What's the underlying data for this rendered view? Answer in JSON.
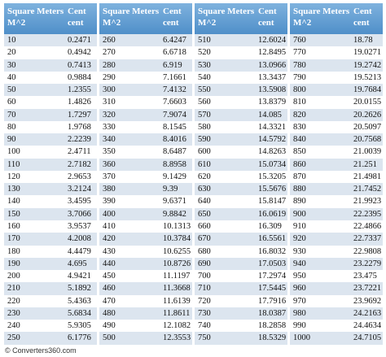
{
  "groups": [
    {
      "headers": [
        "Square Meters\nM^2",
        "Cent\ncent"
      ],
      "rows": [
        [
          10,
          0.2471
        ],
        [
          20,
          0.4942
        ],
        [
          30,
          0.7413
        ],
        [
          40,
          0.9884
        ],
        [
          50,
          1.2355
        ],
        [
          60,
          1.4826
        ],
        [
          70,
          1.7297
        ],
        [
          80,
          1.9768
        ],
        [
          90,
          2.2239
        ],
        [
          100,
          2.4711
        ],
        [
          110,
          2.7182
        ],
        [
          120,
          2.9653
        ],
        [
          130,
          3.2124
        ],
        [
          140,
          3.4595
        ],
        [
          150,
          3.7066
        ],
        [
          160,
          3.9537
        ],
        [
          170,
          4.2008
        ],
        [
          180,
          4.4479
        ],
        [
          190,
          4.695
        ],
        [
          200,
          4.9421
        ],
        [
          210,
          5.1892
        ],
        [
          220,
          5.4363
        ],
        [
          230,
          5.6834
        ],
        [
          240,
          5.9305
        ],
        [
          250,
          6.1776
        ]
      ]
    },
    {
      "headers": [
        "Square Meters\nM^2",
        "Cent\ncent"
      ],
      "rows": [
        [
          260,
          6.4247
        ],
        [
          270,
          6.6718
        ],
        [
          280,
          6.919
        ],
        [
          290,
          7.1661
        ],
        [
          300,
          7.4132
        ],
        [
          310,
          7.6603
        ],
        [
          320,
          7.9074
        ],
        [
          330,
          8.1545
        ],
        [
          340,
          8.4016
        ],
        [
          350,
          8.6487
        ],
        [
          360,
          8.8958
        ],
        [
          370,
          9.1429
        ],
        [
          380,
          9.39
        ],
        [
          390,
          9.6371
        ],
        [
          400,
          9.8842
        ],
        [
          410,
          10.1313
        ],
        [
          420,
          10.3784
        ],
        [
          430,
          10.6255
        ],
        [
          440,
          10.8726
        ],
        [
          450,
          11.1197
        ],
        [
          460,
          11.3668
        ],
        [
          470,
          11.6139
        ],
        [
          480,
          11.8611
        ],
        [
          490,
          12.1082
        ],
        [
          500,
          12.3553
        ]
      ]
    },
    {
      "headers": [
        "Square Meters\nM^2",
        "Cent\ncent"
      ],
      "rows": [
        [
          510,
          12.6024
        ],
        [
          520,
          12.8495
        ],
        [
          530,
          13.0966
        ],
        [
          540,
          13.3437
        ],
        [
          550,
          13.5908
        ],
        [
          560,
          13.8379
        ],
        [
          570,
          14.085
        ],
        [
          580,
          14.3321
        ],
        [
          590,
          14.5792
        ],
        [
          600,
          14.8263
        ],
        [
          610,
          15.0734
        ],
        [
          620,
          15.3205
        ],
        [
          630,
          15.5676
        ],
        [
          640,
          15.8147
        ],
        [
          650,
          16.0619
        ],
        [
          660,
          16.309
        ],
        [
          670,
          16.5561
        ],
        [
          680,
          16.8032
        ],
        [
          690,
          17.0503
        ],
        [
          700,
          17.2974
        ],
        [
          710,
          17.5445
        ],
        [
          720,
          17.7916
        ],
        [
          730,
          18.0387
        ],
        [
          740,
          18.2858
        ],
        [
          750,
          18.5329
        ]
      ]
    },
    {
      "headers": [
        "Square Meters\nM^2",
        "Cent\ncent"
      ],
      "rows": [
        [
          760,
          18.78
        ],
        [
          770,
          19.0271
        ],
        [
          780,
          19.2742
        ],
        [
          790,
          19.5213
        ],
        [
          800,
          19.7684
        ],
        [
          810,
          20.0155
        ],
        [
          820,
          20.2626
        ],
        [
          830,
          20.5097
        ],
        [
          840,
          20.7568
        ],
        [
          850,
          21.0039
        ],
        [
          860,
          21.251
        ],
        [
          870,
          21.4981
        ],
        [
          880,
          21.7452
        ],
        [
          890,
          21.9923
        ],
        [
          900,
          22.2395
        ],
        [
          910,
          22.4866
        ],
        [
          920,
          22.7337
        ],
        [
          930,
          22.9808
        ],
        [
          940,
          23.2279
        ],
        [
          950,
          23.475
        ],
        [
          960,
          23.7221
        ],
        [
          970,
          23.9692
        ],
        [
          980,
          24.2163
        ],
        [
          990,
          24.4634
        ],
        [
          1000,
          24.7105
        ]
      ]
    }
  ],
  "footer": "© Converters360.com"
}
